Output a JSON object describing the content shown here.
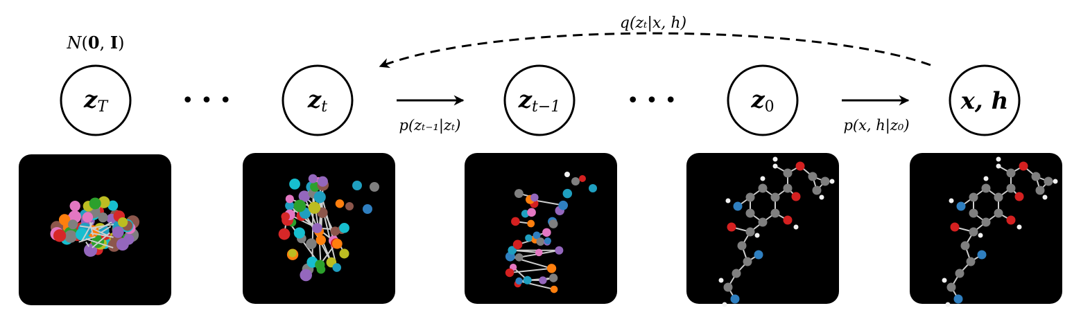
{
  "prior": {
    "symbol": "N",
    "args": [
      "0",
      "I"
    ]
  },
  "nodes": [
    {
      "id": "zT",
      "main": "z",
      "sub": "T"
    },
    {
      "id": "zt",
      "main": "z",
      "sub": "t"
    },
    {
      "id": "zt1",
      "main": "z",
      "sub": "t−1"
    },
    {
      "id": "z0",
      "main": "z",
      "sub": "0"
    },
    {
      "id": "xh",
      "main": "x, h",
      "sub": ""
    }
  ],
  "ellipsis": [
    "• • •",
    "• • •"
  ],
  "edges": {
    "reverse_step": "p(zₜ₋₁|zₜ)",
    "decode": "p(x, h|z₀)",
    "forward": "q(zₜ|x, h)"
  },
  "colors": {
    "carbon": "#7f7f7f",
    "oxygen": "#d42020",
    "nitrogen": "#2f7fc0",
    "hydrogen": "#f2f2f2",
    "noise_palette": [
      "#1f9fc0",
      "#ff7f0e",
      "#2ca02c",
      "#d62728",
      "#9467bd",
      "#8c564b",
      "#e377c2",
      "#7f7f7f",
      "#bcbd22",
      "#17becf"
    ]
  },
  "panels": [
    {
      "id": "panel-zT",
      "state": "noise"
    },
    {
      "id": "panel-zt",
      "state": "partially-denoised"
    },
    {
      "id": "panel-zt1",
      "state": "less-noisy"
    },
    {
      "id": "panel-z0",
      "state": "molecule"
    },
    {
      "id": "panel-xh",
      "state": "molecule"
    }
  ]
}
